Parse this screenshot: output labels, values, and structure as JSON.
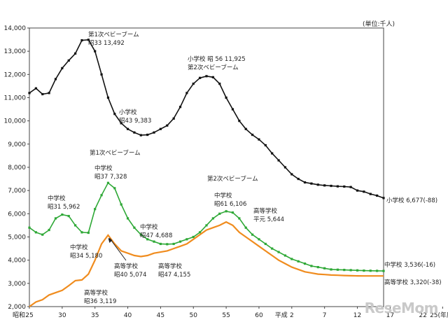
{
  "unit_label": "(単位:千人)",
  "watermark": "ReseMom",
  "chart_data": {
    "type": "line",
    "xlabel": "",
    "ylabel": "",
    "ylim": [
      2000,
      14000
    ],
    "x_start": 25,
    "x_end": 25,
    "y_ticks": [
      "2,000",
      "3,000",
      "4,000",
      "5,000",
      "6,000",
      "7,000",
      "8,000",
      "9,000",
      "10,000",
      "11,000",
      "12,000",
      "13,000",
      "14,000"
    ],
    "x_ticks": [
      {
        "i": 0,
        "label": "25",
        "prefix": "昭和"
      },
      {
        "i": 5,
        "label": "30"
      },
      {
        "i": 10,
        "label": "35"
      },
      {
        "i": 15,
        "label": "40"
      },
      {
        "i": 20,
        "label": "45"
      },
      {
        "i": 25,
        "label": "50"
      },
      {
        "i": 30,
        "label": "55"
      },
      {
        "i": 35,
        "label": "60"
      },
      {
        "i": 40,
        "label": "2",
        "prefix": "平成"
      },
      {
        "i": 45,
        "label": "7"
      },
      {
        "i": 50,
        "label": "12"
      },
      {
        "i": 55,
        "label": "17"
      },
      {
        "i": 60,
        "label": "22"
      },
      {
        "i": 63,
        "label": "25(年度)"
      }
    ],
    "series": [
      {
        "name": "小学校",
        "color": "#111111",
        "values": [
          11200,
          11400,
          11150,
          11200,
          11800,
          12270,
          12600,
          12900,
          13470,
          13492,
          13000,
          12000,
          11000,
          10300,
          9900,
          9650,
          9500,
          9383,
          9400,
          9500,
          9650,
          9800,
          10100,
          10600,
          11200,
          11600,
          11850,
          11925,
          11880,
          11600,
          11000,
          10500,
          10000,
          9650,
          9400,
          9200,
          8950,
          8600,
          8300,
          8000,
          7700,
          7500,
          7350,
          7300,
          7250,
          7220,
          7200,
          7180,
          7170,
          7150,
          7000,
          6950,
          6850,
          6780,
          6677
        ]
      },
      {
        "name": "中学校",
        "color": "#2ea836",
        "values": [
          5400,
          5200,
          5100,
          5300,
          5800,
          5962,
          5900,
          5500,
          5200,
          5180,
          6200,
          6800,
          7328,
          7100,
          6400,
          5800,
          5400,
          5100,
          4900,
          4800,
          4700,
          4688,
          4700,
          4800,
          4900,
          5000,
          5200,
          5500,
          5800,
          6000,
          6106,
          6050,
          5800,
          5400,
          5100,
          4900,
          4700,
          4500,
          4350,
          4200,
          4050,
          3950,
          3850,
          3750,
          3700,
          3650,
          3600,
          3590,
          3580,
          3570,
          3560,
          3550,
          3545,
          3540,
          3536
        ]
      },
      {
        "name": "高等学校",
        "color": "#f08c1e",
        "values": [
          2000,
          2200,
          2300,
          2500,
          2600,
          2700,
          2900,
          3119,
          3150,
          3400,
          4000,
          4700,
          5074,
          4700,
          4400,
          4300,
          4200,
          4155,
          4200,
          4300,
          4350,
          4400,
          4500,
          4600,
          4700,
          4900,
          5100,
          5300,
          5400,
          5500,
          5644,
          5500,
          5200,
          5000,
          4800,
          4600,
          4400,
          4200,
          4000,
          3850,
          3700,
          3600,
          3500,
          3450,
          3400,
          3380,
          3360,
          3350,
          3340,
          3330,
          3325,
          3322,
          3321,
          3320,
          3320
        ]
      }
    ],
    "annotations": [
      {
        "lines": [
          "第1次ベビーブーム",
          "昭33 13,492"
        ],
        "series": 0,
        "i": 9
      },
      {
        "lines": [
          "小学校",
          "昭43 9,383"
        ],
        "series": 0,
        "i": 17
      },
      {
        "lines": [
          "小学校 昭 56 11,925",
          "第2次ベビーブーム"
        ],
        "series": 0,
        "i": 27
      },
      {
        "lines": [
          "第1次ベビーブーム"
        ],
        "series": 1,
        "i": 12
      },
      {
        "lines": [
          "中学校",
          "昭37 7,328"
        ],
        "series": 1,
        "i": 12
      },
      {
        "lines": [
          "中学校",
          "昭31 5,962"
        ],
        "series": 1,
        "i": 5
      },
      {
        "lines": [
          "中学校",
          "昭34 5,180"
        ],
        "series": 1,
        "i": 9
      },
      {
        "lines": [
          "中学校",
          "昭47 4,688"
        ],
        "series": 1,
        "i": 21
      },
      {
        "lines": [
          "第2次ベビーブーム"
        ],
        "series": 1,
        "i": 30
      },
      {
        "lines": [
          "中学校",
          "昭61 6,106"
        ],
        "series": 1,
        "i": 30
      },
      {
        "lines": [
          "高等学校",
          "平元 5,644"
        ],
        "series": 2,
        "i": 30
      },
      {
        "lines": [
          "高等学校",
          "昭40 5,074"
        ],
        "series": 2,
        "i": 12
      },
      {
        "lines": [
          "高等学校",
          "昭47 4,155"
        ],
        "series": 2,
        "i": 17
      },
      {
        "lines": [
          "高等学校",
          "昭36 3,119"
        ],
        "series": 2,
        "i": 7
      }
    ],
    "end_labels": [
      {
        "text": "小学校 6,677(-88)",
        "series": 0
      },
      {
        "text": "中学校 3,536(-16)",
        "series": 1
      },
      {
        "text": "高等学校 3,320(-38)",
        "series": 2
      }
    ]
  }
}
